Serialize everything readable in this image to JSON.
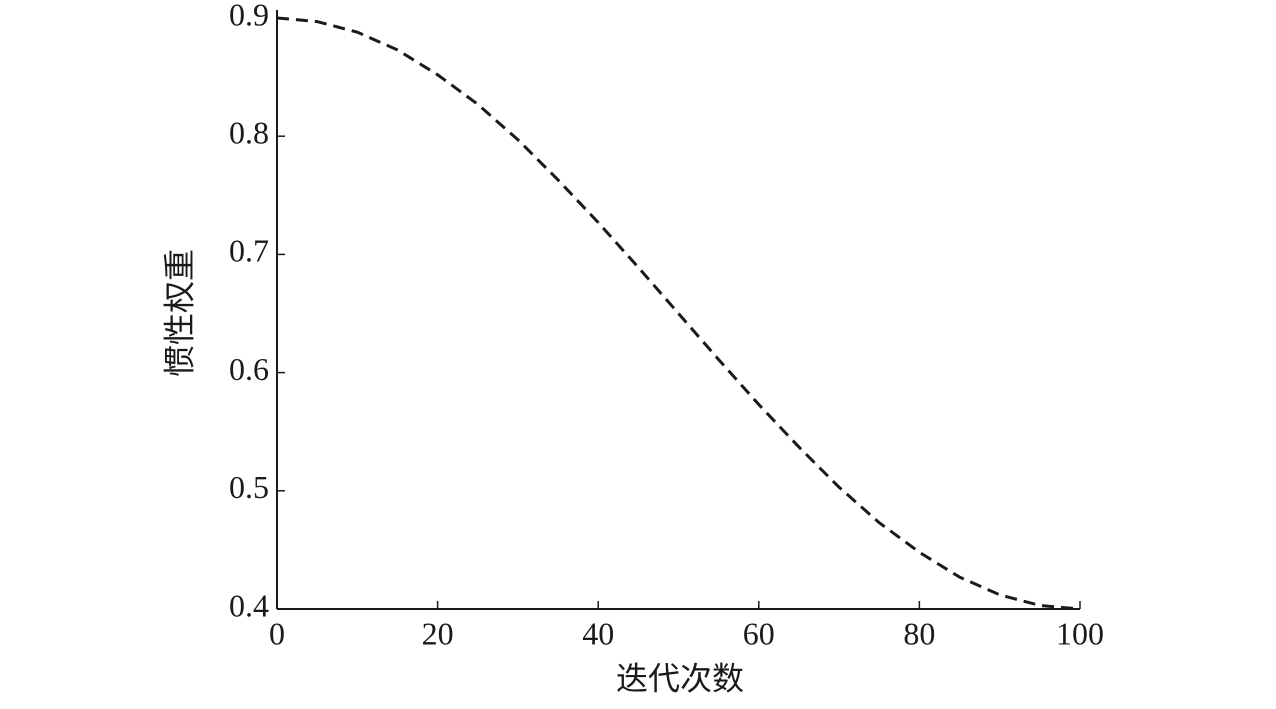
{
  "chart_data": {
    "type": "line",
    "x_label": "迭代次数",
    "y_label": "惯性权重",
    "x": [
      0,
      5,
      10,
      15,
      20,
      25,
      30,
      35,
      40,
      45,
      50,
      55,
      60,
      65,
      70,
      75,
      80,
      85,
      90,
      95,
      100
    ],
    "series": [
      {
        "color": "#1a1a1a",
        "dash": true,
        "values": [
          0.9,
          0.897,
          0.888,
          0.873,
          0.852,
          0.827,
          0.797,
          0.763,
          0.727,
          0.689,
          0.65,
          0.611,
          0.573,
          0.537,
          0.503,
          0.473,
          0.448,
          0.427,
          0.412,
          0.403,
          0.4
        ]
      }
    ],
    "xlim": [
      0,
      100
    ],
    "xticks": [
      0,
      20,
      40,
      60,
      80,
      100
    ],
    "ylim": [
      0.4,
      0.9
    ],
    "yticks": [
      0.4,
      0.5,
      0.6,
      0.7,
      0.8,
      0.9
    ],
    "grid": false
  }
}
